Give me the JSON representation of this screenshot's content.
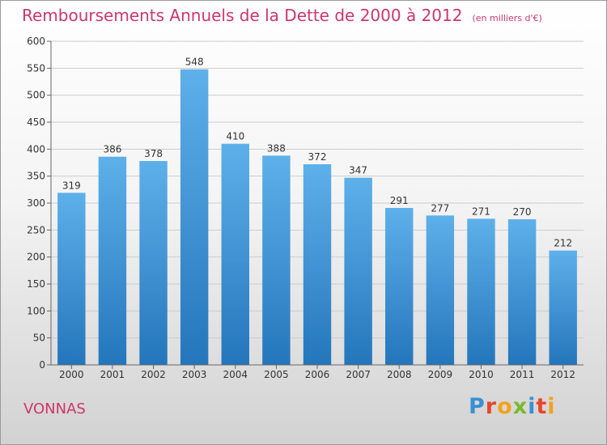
{
  "title": "Remboursements Annuels de la Dette de 2000 à 2012",
  "subtitle": "(en milliers d'€)",
  "town": "VONNAS",
  "logo": {
    "letters": [
      {
        "ch": "P",
        "color": "#3b8fd4"
      },
      {
        "ch": "r",
        "color": "#e8452c"
      },
      {
        "ch": "o",
        "color": "#f2a31b"
      },
      {
        "ch": "x",
        "color": "#7ab929"
      },
      {
        "ch": "i",
        "color": "#3b8fd4"
      },
      {
        "ch": "t",
        "color": "#e8452c"
      },
      {
        "ch": "i",
        "color": "#f2a31b"
      }
    ]
  },
  "colors": {
    "bar_top": "#5eb0ea",
    "bar_bottom": "#2476bc",
    "title": "#d0356a",
    "grid": "#cccccc"
  },
  "chart_data": {
    "type": "bar",
    "title": "Remboursements Annuels de la Dette de 2000 à 2012",
    "subtitle": "(en milliers d'€)",
    "categories": [
      "2000",
      "2001",
      "2002",
      "2003",
      "2004",
      "2005",
      "2006",
      "2007",
      "2008",
      "2009",
      "2010",
      "2011",
      "2012"
    ],
    "values": [
      319,
      386,
      378,
      548,
      410,
      388,
      372,
      347,
      291,
      277,
      271,
      270,
      212
    ],
    "xlabel": "",
    "ylabel": "",
    "ylim": [
      0,
      600
    ],
    "yticks": [
      0,
      50,
      100,
      150,
      200,
      250,
      300,
      350,
      400,
      450,
      500,
      550,
      600
    ],
    "grid": true,
    "legend": "none"
  }
}
